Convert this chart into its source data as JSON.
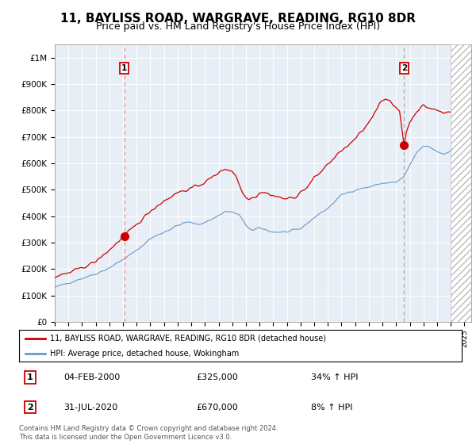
{
  "title": "11, BAYLISS ROAD, WARGRAVE, READING, RG10 8DR",
  "subtitle": "Price paid vs. HM Land Registry's House Price Index (HPI)",
  "ylim": [
    0,
    1050000
  ],
  "xlim_start": 1995.0,
  "xlim_end": 2025.5,
  "yticks": [
    0,
    100000,
    200000,
    300000,
    400000,
    500000,
    600000,
    700000,
    800000,
    900000,
    1000000
  ],
  "ytick_labels": [
    "£0",
    "£100K",
    "£200K",
    "£300K",
    "£400K",
    "£500K",
    "£600K",
    "£700K",
    "£800K",
    "£900K",
    "£1M"
  ],
  "title_fontsize": 11,
  "subtitle_fontsize": 9,
  "background_color": "#ffffff",
  "plot_bg_color": "#e8eef5",
  "purchase1_date": "04-FEB-2000",
  "purchase1_price": 325000,
  "purchase1_pct": "34%",
  "purchase1_x": 2000.09,
  "purchase2_date": "31-JUL-2020",
  "purchase2_price": 670000,
  "purchase2_pct": "8%",
  "purchase2_x": 2020.58,
  "legend_label1": "11, BAYLISS ROAD, WARGRAVE, READING, RG10 8DR (detached house)",
  "legend_label2": "HPI: Average price, detached house, Wokingham",
  "footer": "Contains HM Land Registry data © Crown copyright and database right 2024.\nThis data is licensed under the Open Government Licence v3.0.",
  "red_line_color": "#cc0000",
  "blue_line_color": "#6699cc",
  "marker_color": "#cc0000",
  "hatch_line_color": "#bbbbbb"
}
